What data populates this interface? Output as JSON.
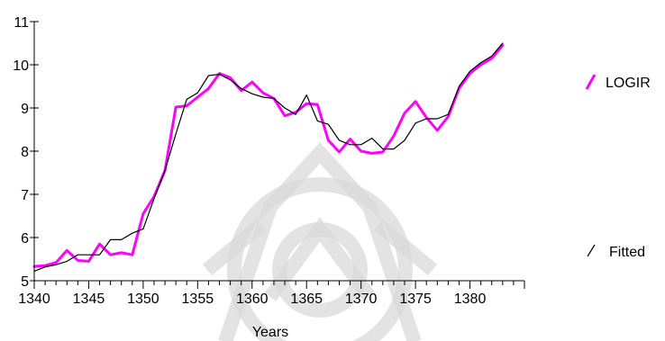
{
  "chart_data": {
    "type": "line",
    "title": "",
    "xlabel": "Years",
    "ylabel": "",
    "xlim": [
      1340,
      1385
    ],
    "ylim": [
      5,
      11
    ],
    "x_ticks": [
      1340,
      1345,
      1350,
      1355,
      1360,
      1365,
      1370,
      1375,
      1380
    ],
    "y_ticks": [
      5,
      6,
      7,
      8,
      9,
      10,
      11
    ],
    "grid": false,
    "legend_placement": "right",
    "x": [
      1340,
      1341,
      1342,
      1343,
      1344,
      1345,
      1346,
      1347,
      1348,
      1349,
      1350,
      1351,
      1352,
      1353,
      1354,
      1355,
      1356,
      1357,
      1358,
      1359,
      1360,
      1361,
      1362,
      1363,
      1364,
      1365,
      1366,
      1367,
      1368,
      1369,
      1370,
      1371,
      1372,
      1373,
      1374,
      1375,
      1376,
      1377,
      1378,
      1379,
      1380,
      1381,
      1382,
      1383
    ],
    "series": [
      {
        "name": "LOGIR",
        "color": "#ff00ff",
        "values": [
          5.33,
          5.35,
          5.42,
          5.7,
          5.47,
          5.45,
          5.85,
          5.6,
          5.65,
          5.6,
          6.55,
          6.95,
          7.55,
          9.02,
          9.05,
          9.25,
          9.45,
          9.8,
          9.7,
          9.4,
          9.6,
          9.35,
          9.22,
          8.82,
          8.9,
          9.1,
          9.08,
          8.25,
          7.98,
          8.28,
          8.0,
          7.95,
          7.98,
          8.35,
          8.88,
          9.15,
          8.78,
          8.48,
          8.8,
          9.45,
          9.8,
          10.0,
          10.15,
          10.45
        ]
      },
      {
        "name": "Fitted",
        "color": "#000000",
        "values": [
          5.22,
          5.32,
          5.37,
          5.45,
          5.6,
          5.6,
          5.6,
          5.95,
          5.95,
          6.1,
          6.2,
          6.9,
          7.55,
          8.4,
          9.2,
          9.35,
          9.75,
          9.78,
          9.65,
          9.45,
          9.33,
          9.25,
          9.22,
          9.0,
          8.85,
          9.3,
          8.7,
          8.62,
          8.25,
          8.15,
          8.15,
          8.3,
          8.05,
          8.05,
          8.25,
          8.65,
          8.75,
          8.75,
          8.85,
          9.5,
          9.85,
          10.05,
          10.2,
          10.5
        ]
      }
    ]
  }
}
